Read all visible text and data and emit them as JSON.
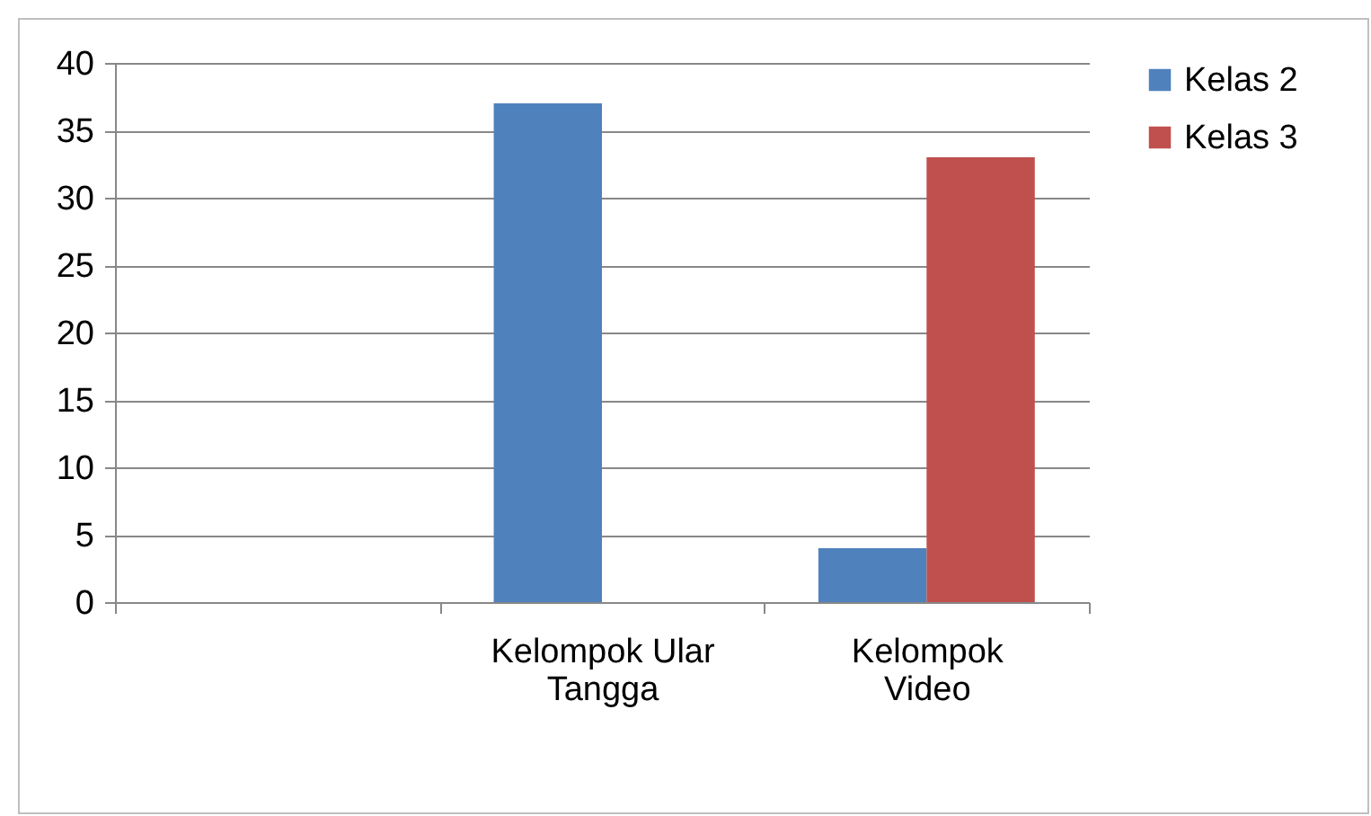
{
  "chart_data": {
    "type": "bar",
    "categories": [
      null,
      "Kelompok Ular Tangga",
      "Kelompok Video"
    ],
    "series": [
      {
        "name": "Kelas 2",
        "color": "#4f81bd",
        "values": [
          null,
          37,
          4
        ]
      },
      {
        "name": "Kelas 3",
        "color": "#c0504d",
        "values": [
          null,
          null,
          33
        ]
      }
    ],
    "ylim": [
      0,
      40
    ],
    "yticks": [
      0,
      5,
      10,
      15,
      20,
      25,
      30,
      35,
      40
    ],
    "grid": "y",
    "legend": "right"
  }
}
